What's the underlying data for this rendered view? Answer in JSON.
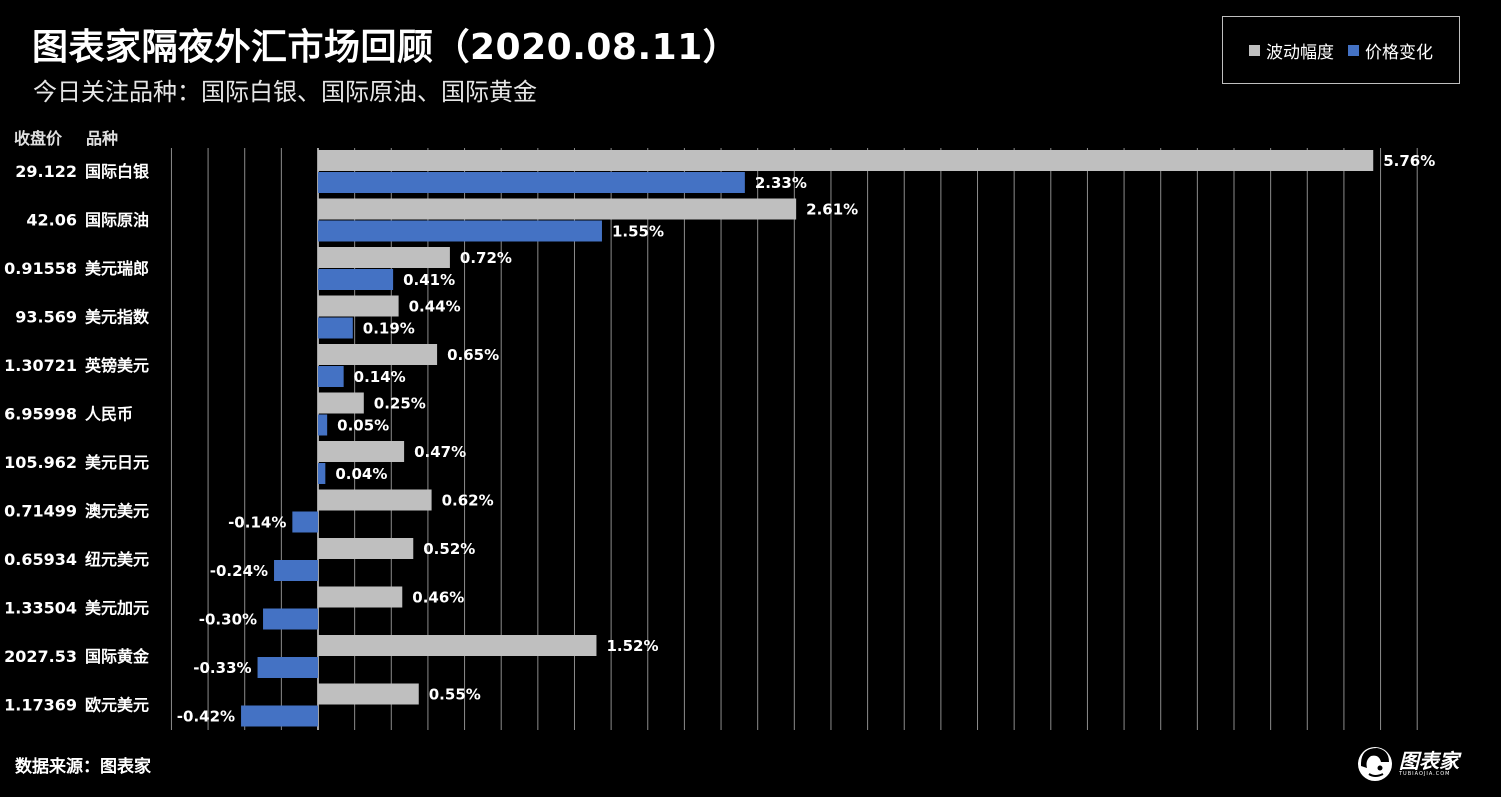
{
  "title": "图表家隔夜外汇市场回顾（2020.08.11）",
  "subtitle": "今日关注品种：国际白银、国际原油、国际黄金",
  "column_headers": {
    "close_price": "收盘价",
    "variety": "品种"
  },
  "source_text": "数据来源：图表家",
  "logo": {
    "name": "图表家",
    "subtext": "TUBIAOJIA.COM"
  },
  "colors": {
    "background": "#000000",
    "volatility": "#bfbfbf",
    "price_change": "#4472c4",
    "grid": "#8c8c8c",
    "zero_line": "#d9d9d9"
  },
  "chart_data": {
    "type": "bar",
    "orientation": "horizontal",
    "categories": [
      "国际白银",
      "国际原油",
      "美元瑞郎",
      "美元指数",
      "英镑美元",
      "人民币",
      "美元日元",
      "澳元美元",
      "纽元美元",
      "美元加元",
      "国际黄金",
      "欧元美元"
    ],
    "close_prices": [
      "29.122",
      "42.06",
      "0.91558",
      "93.569",
      "1.30721",
      "6.95998",
      "105.962",
      "0.71499",
      "0.65934",
      "1.33504",
      "2027.53",
      "1.17369"
    ],
    "series": [
      {
        "name": "波动幅度",
        "values": [
          5.76,
          2.61,
          0.72,
          0.44,
          0.65,
          0.25,
          0.47,
          0.62,
          0.52,
          0.46,
          1.52,
          0.55
        ],
        "labels": [
          "5.76%",
          "2.61%",
          "0.72%",
          "0.44%",
          "0.65%",
          "0.25%",
          "0.47%",
          "0.62%",
          "0.52%",
          "0.46%",
          "1.52%",
          "0.55%"
        ]
      },
      {
        "name": "价格变化",
        "values": [
          2.33,
          1.55,
          0.41,
          0.19,
          0.14,
          0.05,
          0.04,
          -0.14,
          -0.24,
          -0.3,
          -0.33,
          -0.42
        ],
        "labels": [
          "2.33%",
          "1.55%",
          "0.41%",
          "0.19%",
          "0.14%",
          "0.05%",
          "0.04%",
          "-0.14%",
          "-0.24%",
          "-0.30%",
          "-0.33%",
          "-0.42%"
        ]
      }
    ],
    "xlim": [
      -0.8,
      6.0
    ],
    "grid": true,
    "legend_position": "top-right"
  }
}
